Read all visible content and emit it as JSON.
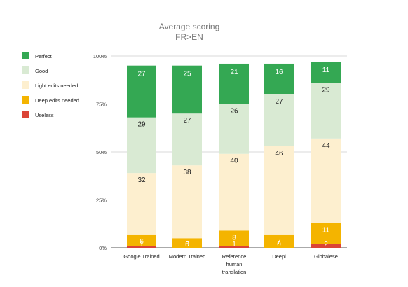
{
  "chart_data": {
    "type": "bar",
    "stacked": true,
    "percent": true,
    "title": "Average scoring",
    "subtitle": "FR>EN",
    "xlabel": "",
    "ylabel": "",
    "ylim": [
      0,
      100
    ],
    "y_ticks": [
      "0%",
      "25%",
      "50%",
      "75%",
      "100%"
    ],
    "legend_position": "left",
    "grid": true,
    "categories": [
      "Google Trained",
      "Modern Trained",
      "Reference human translation",
      "Deepl",
      "Globalese"
    ],
    "category_label_lines": [
      [
        "Google Trained"
      ],
      [
        "Modern Trained"
      ],
      [
        "Reference",
        "human",
        "translation"
      ],
      [
        "Deepl"
      ],
      [
        "Globalese"
      ]
    ],
    "series": [
      {
        "name": "Useless",
        "color": "#db4437",
        "label_color": "#ffffff",
        "values": [
          1,
          0,
          1,
          0,
          2
        ]
      },
      {
        "name": "Deep edits needed",
        "color": "#f4b400",
        "label_color": "#ffffff",
        "values": [
          6,
          5,
          8,
          7,
          11
        ]
      },
      {
        "name": "Light edits needed",
        "color": "#fdefcf",
        "label_color": "#222222",
        "values": [
          32,
          38,
          40,
          46,
          44
        ]
      },
      {
        "name": "Good",
        "color": "#d9ead3",
        "label_color": "#222222",
        "values": [
          29,
          27,
          26,
          27,
          29
        ]
      },
      {
        "name": "Perfect",
        "color": "#34a853",
        "label_color": "#ffffff",
        "values": [
          27,
          25,
          21,
          16,
          11
        ]
      }
    ],
    "legend_order": [
      "Perfect",
      "Good",
      "Light edits needed",
      "Deep edits needed",
      "Useless"
    ]
  }
}
